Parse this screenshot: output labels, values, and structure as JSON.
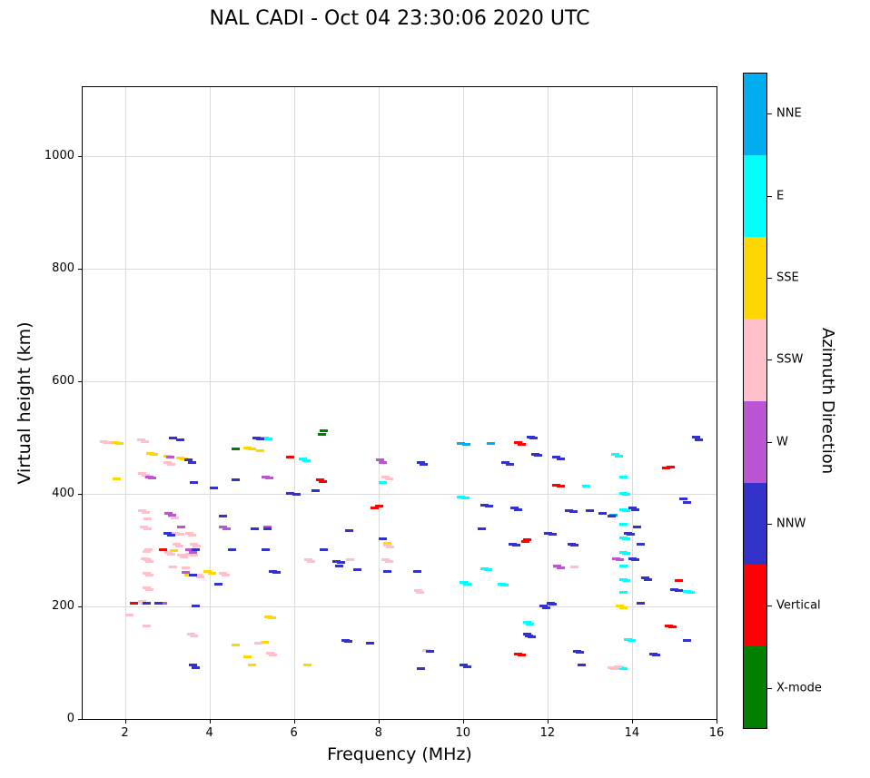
{
  "title": "NAL CADI - Oct 04 23:30:06 2020 UTC",
  "chart_data": {
    "type": "scatter",
    "title": "NAL CADI - Oct 04 23:30:06 2020 UTC",
    "xlabel": "Frequency (MHz)",
    "ylabel": "Virtual height (km)",
    "xlim": [
      1,
      16
    ],
    "ylim": [
      0,
      1122
    ],
    "xticks": [
      2,
      4,
      6,
      8,
      10,
      12,
      14,
      16
    ],
    "yticks": [
      0,
      200,
      400,
      600,
      800,
      1000
    ],
    "grid": true,
    "marker": "horizontal-dash",
    "legend_position": "right-colorbar",
    "colorbar": {
      "label": "Azimuth Direction",
      "categories_top_to_bottom": [
        {
          "label": "NNE",
          "color": "#00aeef"
        },
        {
          "label": "E",
          "color": "#00ffff"
        },
        {
          "label": "SSE",
          "color": "#ffd700"
        },
        {
          "label": "SSW",
          "color": "#ffc0cb"
        },
        {
          "label": "W",
          "color": "#ba55d3"
        },
        {
          "label": "NNW",
          "color": "#3333cc"
        },
        {
          "label": "Vertical",
          "color": "#ff0000"
        },
        {
          "label": "X-mode",
          "color": "#008000"
        }
      ]
    },
    "series": [
      {
        "name": "NNE",
        "color": "#00aeef",
        "points": [
          [
            9.95,
            490
          ],
          [
            10.06,
            488
          ],
          [
            10.65,
            490
          ],
          [
            13.55,
            362
          ]
        ]
      },
      {
        "name": "E",
        "color": "#00ffff",
        "points": [
          [
            5.3,
            500
          ],
          [
            5.38,
            498
          ],
          [
            6.2,
            462
          ],
          [
            6.28,
            460
          ],
          [
            8.1,
            420
          ],
          [
            9.95,
            395
          ],
          [
            10.05,
            393
          ],
          [
            10.0,
            243
          ],
          [
            10.1,
            241
          ],
          [
            10.5,
            268
          ],
          [
            10.58,
            266
          ],
          [
            10.9,
            240
          ],
          [
            10.98,
            238
          ],
          [
            11.5,
            172
          ],
          [
            11.58,
            170
          ],
          [
            12.9,
            415
          ],
          [
            13.6,
            470
          ],
          [
            13.68,
            468
          ],
          [
            13.78,
            430
          ],
          [
            13.78,
            402
          ],
          [
            13.86,
            400
          ],
          [
            13.78,
            372
          ],
          [
            13.86,
            370
          ],
          [
            13.78,
            347
          ],
          [
            13.78,
            322
          ],
          [
            13.86,
            320
          ],
          [
            13.78,
            297
          ],
          [
            13.86,
            295
          ],
          [
            13.78,
            272
          ],
          [
            13.78,
            248
          ],
          [
            13.86,
            246
          ],
          [
            13.78,
            226
          ],
          [
            13.9,
            142
          ],
          [
            13.98,
            140
          ],
          [
            13.7,
            92
          ],
          [
            13.78,
            90
          ],
          [
            15.3,
            227
          ],
          [
            15.38,
            225
          ]
        ]
      },
      {
        "name": "SSE",
        "color": "#ffd700",
        "points": [
          [
            1.75,
            492
          ],
          [
            1.85,
            490
          ],
          [
            1.8,
            428
          ],
          [
            2.6,
            472
          ],
          [
            2.68,
            470
          ],
          [
            3.0,
            467
          ],
          [
            3.3,
            464
          ],
          [
            3.38,
            462
          ],
          [
            3.15,
            300
          ],
          [
            3.5,
            257
          ],
          [
            3.95,
            262
          ],
          [
            4.05,
            260
          ],
          [
            4.9,
            482
          ],
          [
            5.0,
            480
          ],
          [
            5.2,
            477
          ],
          [
            4.6,
            132
          ],
          [
            4.88,
            112
          ],
          [
            5.0,
            97
          ],
          [
            5.38,
            182
          ],
          [
            5.46,
            180
          ],
          [
            5.3,
            137
          ],
          [
            6.3,
            97
          ],
          [
            8.2,
            312
          ],
          [
            13.7,
            202
          ],
          [
            13.78,
            198
          ]
        ]
      },
      {
        "name": "SSW",
        "color": "#ffc0cb",
        "points": [
          [
            1.5,
            494
          ],
          [
            1.58,
            492
          ],
          [
            2.38,
            496
          ],
          [
            2.46,
            493
          ],
          [
            2.4,
            437
          ],
          [
            2.48,
            434
          ],
          [
            2.54,
            430
          ],
          [
            2.4,
            371
          ],
          [
            2.48,
            368
          ],
          [
            2.52,
            356
          ],
          [
            2.44,
            341
          ],
          [
            2.52,
            338
          ],
          [
            2.54,
            302
          ],
          [
            2.5,
            299
          ],
          [
            2.46,
            286
          ],
          [
            2.52,
            283
          ],
          [
            2.56,
            281
          ],
          [
            2.5,
            259
          ],
          [
            2.56,
            256
          ],
          [
            2.5,
            234
          ],
          [
            2.56,
            231
          ],
          [
            2.4,
            209
          ],
          [
            2.46,
            206
          ],
          [
            2.5,
            166
          ],
          [
            2.1,
            186
          ],
          [
            3.0,
            456
          ],
          [
            3.08,
            453
          ],
          [
            3.1,
            361
          ],
          [
            3.18,
            358
          ],
          [
            3.2,
            331
          ],
          [
            3.3,
            329
          ],
          [
            3.22,
            311
          ],
          [
            3.28,
            308
          ],
          [
            3.02,
            296
          ],
          [
            3.08,
            293
          ],
          [
            3.32,
            291
          ],
          [
            3.38,
            288
          ],
          [
            3.12,
            271
          ],
          [
            3.42,
            269
          ],
          [
            3.52,
            331
          ],
          [
            3.58,
            328
          ],
          [
            3.62,
            311
          ],
          [
            3.68,
            308
          ],
          [
            3.52,
            293
          ],
          [
            3.62,
            291
          ],
          [
            3.72,
            256
          ],
          [
            3.78,
            253
          ],
          [
            3.55,
            152
          ],
          [
            3.62,
            149
          ],
          [
            4.3,
            259
          ],
          [
            4.38,
            256
          ],
          [
            5.42,
            117
          ],
          [
            5.5,
            114
          ],
          [
            5.15,
            136
          ],
          [
            6.32,
            283
          ],
          [
            6.4,
            281
          ],
          [
            7.32,
            283
          ],
          [
            8.16,
            431
          ],
          [
            8.24,
            428
          ],
          [
            8.2,
            310
          ],
          [
            8.26,
            307
          ],
          [
            8.16,
            283
          ],
          [
            8.24,
            281
          ],
          [
            8.92,
            229
          ],
          [
            8.98,
            226
          ],
          [
            9.12,
            122
          ],
          [
            12.22,
            271
          ],
          [
            12.3,
            269
          ],
          [
            12.62,
            271
          ],
          [
            13.5,
            92
          ],
          [
            13.58,
            90
          ],
          [
            13.66,
            93
          ]
        ]
      },
      {
        "name": "W",
        "color": "#ba55d3",
        "points": [
          [
            2.56,
            431
          ],
          [
            2.64,
            429
          ],
          [
            2.9,
            206
          ],
          [
            3.02,
            366
          ],
          [
            3.1,
            363
          ],
          [
            3.06,
            466
          ],
          [
            3.32,
            341
          ],
          [
            3.52,
            301
          ],
          [
            3.6,
            297
          ],
          [
            3.42,
            261
          ],
          [
            4.32,
            341
          ],
          [
            4.4,
            338
          ],
          [
            5.32,
            431
          ],
          [
            5.4,
            429
          ],
          [
            5.36,
            341
          ],
          [
            8.02,
            461
          ],
          [
            8.1,
            457
          ],
          [
            12.22,
            272
          ],
          [
            12.3,
            270
          ],
          [
            13.62,
            286
          ],
          [
            13.7,
            284
          ]
        ]
      },
      {
        "name": "NNW",
        "color": "#3333cc",
        "points": [
          [
            2.5,
            206
          ],
          [
            2.78,
            206
          ],
          [
            3.0,
            331
          ],
          [
            3.08,
            328
          ],
          [
            3.12,
            500
          ],
          [
            3.3,
            496
          ],
          [
            3.5,
            461
          ],
          [
            3.58,
            457
          ],
          [
            3.62,
            421
          ],
          [
            3.66,
            301
          ],
          [
            3.6,
            256
          ],
          [
            3.66,
            201
          ],
          [
            3.6,
            96
          ],
          [
            3.66,
            92
          ],
          [
            4.1,
            411
          ],
          [
            4.2,
            241
          ],
          [
            4.3,
            361
          ],
          [
            4.52,
            301
          ],
          [
            4.6,
            426
          ],
          [
            5.06,
            339
          ],
          [
            5.1,
            500
          ],
          [
            5.2,
            498
          ],
          [
            5.32,
            301
          ],
          [
            5.36,
            339
          ],
          [
            5.5,
            263
          ],
          [
            5.58,
            261
          ],
          [
            5.9,
            401
          ],
          [
            6.06,
            399
          ],
          [
            6.5,
            406
          ],
          [
            6.7,
            301
          ],
          [
            7.0,
            281
          ],
          [
            7.1,
            279
          ],
          [
            7.06,
            273
          ],
          [
            7.3,
            336
          ],
          [
            7.5,
            266
          ],
          [
            7.2,
            141
          ],
          [
            7.28,
            139
          ],
          [
            7.8,
            136
          ],
          [
            8.1,
            321
          ],
          [
            8.2,
            263
          ],
          [
            8.9,
            263
          ],
          [
            9.0,
            456
          ],
          [
            9.06,
            453
          ],
          [
            9.0,
            91
          ],
          [
            9.2,
            121
          ],
          [
            10.0,
            96
          ],
          [
            10.1,
            94
          ],
          [
            10.5,
            381
          ],
          [
            10.6,
            379
          ],
          [
            10.44,
            339
          ],
          [
            11.0,
            456
          ],
          [
            11.1,
            453
          ],
          [
            11.2,
            376
          ],
          [
            11.3,
            373
          ],
          [
            11.16,
            311
          ],
          [
            11.24,
            309
          ],
          [
            11.5,
            151
          ],
          [
            11.56,
            149
          ],
          [
            11.62,
            146
          ],
          [
            11.6,
            501
          ],
          [
            11.66,
            499
          ],
          [
            11.7,
            471
          ],
          [
            11.76,
            469
          ],
          [
            11.9,
            201
          ],
          [
            11.96,
            199
          ],
          [
            12.0,
            331
          ],
          [
            12.1,
            329
          ],
          [
            12.06,
            206
          ],
          [
            12.12,
            204
          ],
          [
            12.2,
            466
          ],
          [
            12.3,
            463
          ],
          [
            12.5,
            371
          ],
          [
            12.6,
            369
          ],
          [
            12.56,
            311
          ],
          [
            12.62,
            309
          ],
          [
            12.7,
            121
          ],
          [
            12.76,
            119
          ],
          [
            12.8,
            96
          ],
          [
            13.0,
            371
          ],
          [
            13.3,
            366
          ],
          [
            13.5,
            361
          ],
          [
            13.9,
            331
          ],
          [
            13.96,
            329
          ],
          [
            14.0,
            376
          ],
          [
            14.06,
            373
          ],
          [
            14.0,
            286
          ],
          [
            14.06,
            284
          ],
          [
            14.1,
            341
          ],
          [
            14.2,
            311
          ],
          [
            14.2,
            206
          ],
          [
            14.3,
            251
          ],
          [
            14.36,
            249
          ],
          [
            14.5,
            116
          ],
          [
            14.56,
            114
          ],
          [
            15.0,
            231
          ],
          [
            15.1,
            229
          ],
          [
            15.2,
            391
          ],
          [
            15.3,
            386
          ],
          [
            15.3,
            141
          ],
          [
            15.5,
            501
          ],
          [
            15.56,
            497
          ]
        ]
      },
      {
        "name": "Vertical",
        "color": "#ff0000",
        "points": [
          [
            2.2,
            206
          ],
          [
            2.9,
            301
          ],
          [
            5.9,
            466
          ],
          [
            6.6,
            426
          ],
          [
            6.68,
            423
          ],
          [
            7.9,
            376
          ],
          [
            8.0,
            379
          ],
          [
            11.3,
            491
          ],
          [
            11.38,
            489
          ],
          [
            11.3,
            116
          ],
          [
            11.38,
            114
          ],
          [
            11.46,
            316
          ],
          [
            11.5,
            319
          ],
          [
            12.2,
            416
          ],
          [
            12.3,
            414
          ],
          [
            14.8,
            446
          ],
          [
            14.9,
            448
          ],
          [
            14.86,
            166
          ],
          [
            14.94,
            164
          ],
          [
            15.1,
            246
          ]
        ]
      },
      {
        "name": "X-mode",
        "color": "#008000",
        "points": [
          [
            6.7,
            512
          ],
          [
            6.66,
            506
          ],
          [
            4.62,
            481
          ]
        ]
      }
    ]
  }
}
